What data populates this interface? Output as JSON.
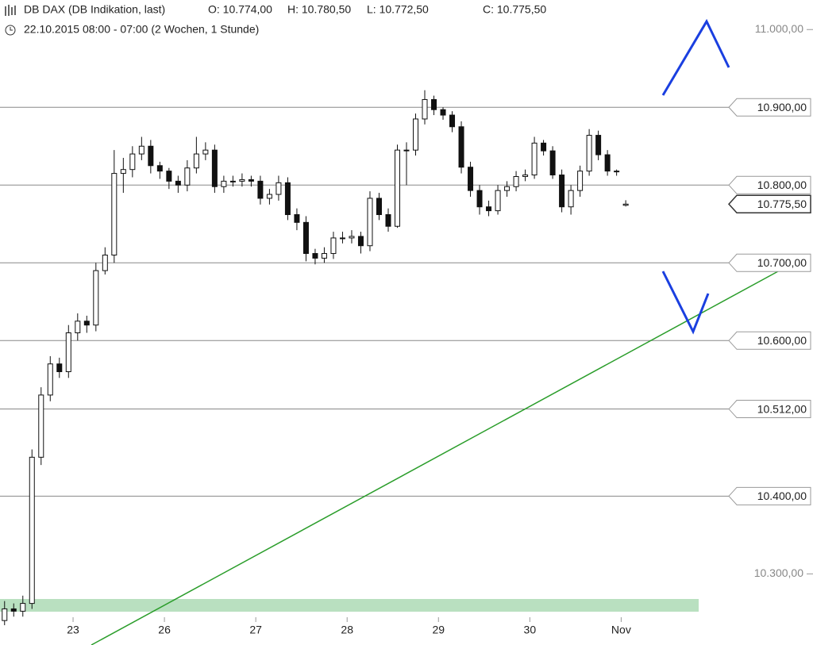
{
  "chart_data": {
    "type": "candlestick",
    "title": "DB DAX (DB Indikation, last)",
    "ohlc_labels": [
      "O: 10.774,00",
      "H: 10.780,50",
      "L: 10.772,50",
      "C: 10.775,50"
    ],
    "subtitle": "22.10.2015 08:00 - 07:00 (2 Wochen, 1 Stunde)",
    "open": [
      10240,
      10255,
      10252,
      10262,
      10450,
      10530,
      10570,
      10560,
      10610,
      10625,
      10620,
      10690,
      10710,
      10815,
      10820,
      10840,
      10850,
      10825,
      10818,
      10805,
      10800,
      10822,
      10840,
      10845,
      10798,
      10805,
      10805,
      10807,
      10805,
      10783,
      10788,
      10803,
      10762,
      10752,
      10712,
      10706,
      10712,
      10732,
      10732,
      10734,
      10722,
      10783,
      10762,
      10747,
      10845,
      10845,
      10885,
      10910,
      10897,
      10890,
      10875,
      10823,
      10793,
      10772,
      10767,
      10793,
      10798,
      10811,
      10813,
      10854,
      10844,
      10813,
      10772,
      10793,
      10818,
      10864,
      10839,
      10818,
      10774
    ],
    "high": [
      10265,
      10262,
      10272,
      10460,
      10540,
      10580,
      10578,
      10620,
      10635,
      10632,
      10700,
      10720,
      10845,
      10835,
      10850,
      10862,
      10858,
      10830,
      10822,
      10812,
      10832,
      10862,
      10855,
      10852,
      10812,
      10812,
      10815,
      10812,
      10812,
      10795,
      10812,
      10810,
      10770,
      10760,
      10718,
      10720,
      10740,
      10740,
      10742,
      10740,
      10792,
      10790,
      10770,
      10852,
      10855,
      10892,
      10922,
      10915,
      10900,
      10895,
      10882,
      10830,
      10800,
      10780,
      10800,
      10805,
      10818,
      10820,
      10862,
      10858,
      10850,
      10820,
      10800,
      10825,
      10872,
      10870,
      10845,
      10820,
      10780.5
    ],
    "low": [
      10234,
      10245,
      10245,
      10255,
      10440,
      10522,
      10552,
      10552,
      10600,
      10610,
      10612,
      10685,
      10700,
      10790,
      10810,
      10832,
      10815,
      10808,
      10795,
      10790,
      10792,
      10815,
      10832,
      10790,
      10790,
      10798,
      10798,
      10798,
      10775,
      10775,
      10780,
      10755,
      10742,
      10702,
      10698,
      10700,
      10705,
      10725,
      10725,
      10712,
      10715,
      10755,
      10740,
      10745,
      10800,
      10838,
      10878,
      10890,
      10884,
      10868,
      10815,
      10785,
      10762,
      10760,
      10762,
      10785,
      10792,
      10805,
      10808,
      10838,
      10808,
      10765,
      10762,
      10785,
      10812,
      10832,
      10812,
      10812,
      10772.5
    ],
    "close": [
      10255,
      10252,
      10262,
      10450,
      10530,
      10570,
      10560,
      10610,
      10625,
      10620,
      10690,
      10710,
      10815,
      10820,
      10840,
      10850,
      10825,
      10818,
      10805,
      10800,
      10822,
      10840,
      10845,
      10798,
      10805,
      10805,
      10807,
      10805,
      10783,
      10788,
      10803,
      10762,
      10752,
      10712,
      10706,
      10712,
      10732,
      10732,
      10734,
      10722,
      10783,
      10762,
      10747,
      10845,
      10845,
      10885,
      10910,
      10897,
      10890,
      10875,
      10823,
      10793,
      10772,
      10767,
      10793,
      10798,
      10811,
      10813,
      10854,
      10844,
      10813,
      10772,
      10793,
      10818,
      10864,
      10839,
      10818,
      10818,
      10775.5
    ],
    "up_color": "#ffffff",
    "down_color": "#111111",
    "xlim": [
      -0.5,
      88.5
    ],
    "xticks": [
      {
        "value": 7.5,
        "label": "23"
      },
      {
        "value": 17.5,
        "label": "26"
      },
      {
        "value": 27.5,
        "label": "27"
      },
      {
        "value": 37.5,
        "label": "28"
      },
      {
        "value": 47.5,
        "label": "29"
      },
      {
        "value": 57.5,
        "label": "30"
      },
      {
        "value": 67.5,
        "label": "Nov"
      }
    ],
    "ylim": [
      10232,
      11038
    ],
    "yticks": [
      {
        "value": 11000,
        "label": "11.000,00"
      },
      {
        "value": 10300,
        "label": "10.300,00"
      }
    ],
    "levels": [
      {
        "value": 10900,
        "label": "10.900,00"
      },
      {
        "value": 10800,
        "label": "10.800,00"
      },
      {
        "value": 10700,
        "label": "10.700,00"
      },
      {
        "value": 10600,
        "label": "10.600,00"
      },
      {
        "value": 10512,
        "label": "10.512,00"
      },
      {
        "value": 10400,
        "label": "10.400,00"
      }
    ],
    "last_price": {
      "value": 10775.5,
      "label": "10.775,50"
    }
  }
}
